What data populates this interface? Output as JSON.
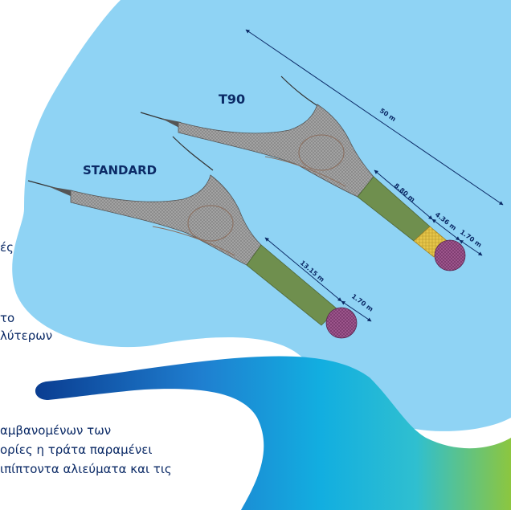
{
  "labels": {
    "t90": "T90",
    "standard": "STANDARD"
  },
  "dimensions": {
    "total": "50 m",
    "t90_extension": "8.80 m",
    "t90_section": "4.36 m",
    "t90_codend": "1.70 m",
    "std_extension": "13.15 m",
    "std_codend": "1.70 m"
  },
  "text_fragments": {
    "left_1": "ές",
    "left_2": "το",
    "left_3": "λύτερων",
    "bottom_1": "αμβανομένων των",
    "bottom_2": "ορίες η τράτα παραμένει",
    "bottom_3": "ιπίπτοντα αλιεύματα και τις"
  },
  "colors": {
    "sea_blue": "#8fd3f4",
    "net_gray": "#9c9c9c",
    "extension_green": "#6f8f4e",
    "t90_yellow": "#e6c64a",
    "codend_purple": "#a0588f",
    "text_navy": "#0b2a66",
    "wave_dark": "#0a3d91",
    "wave_mid": "#12aee0",
    "wave_end": "#8cc63f"
  }
}
